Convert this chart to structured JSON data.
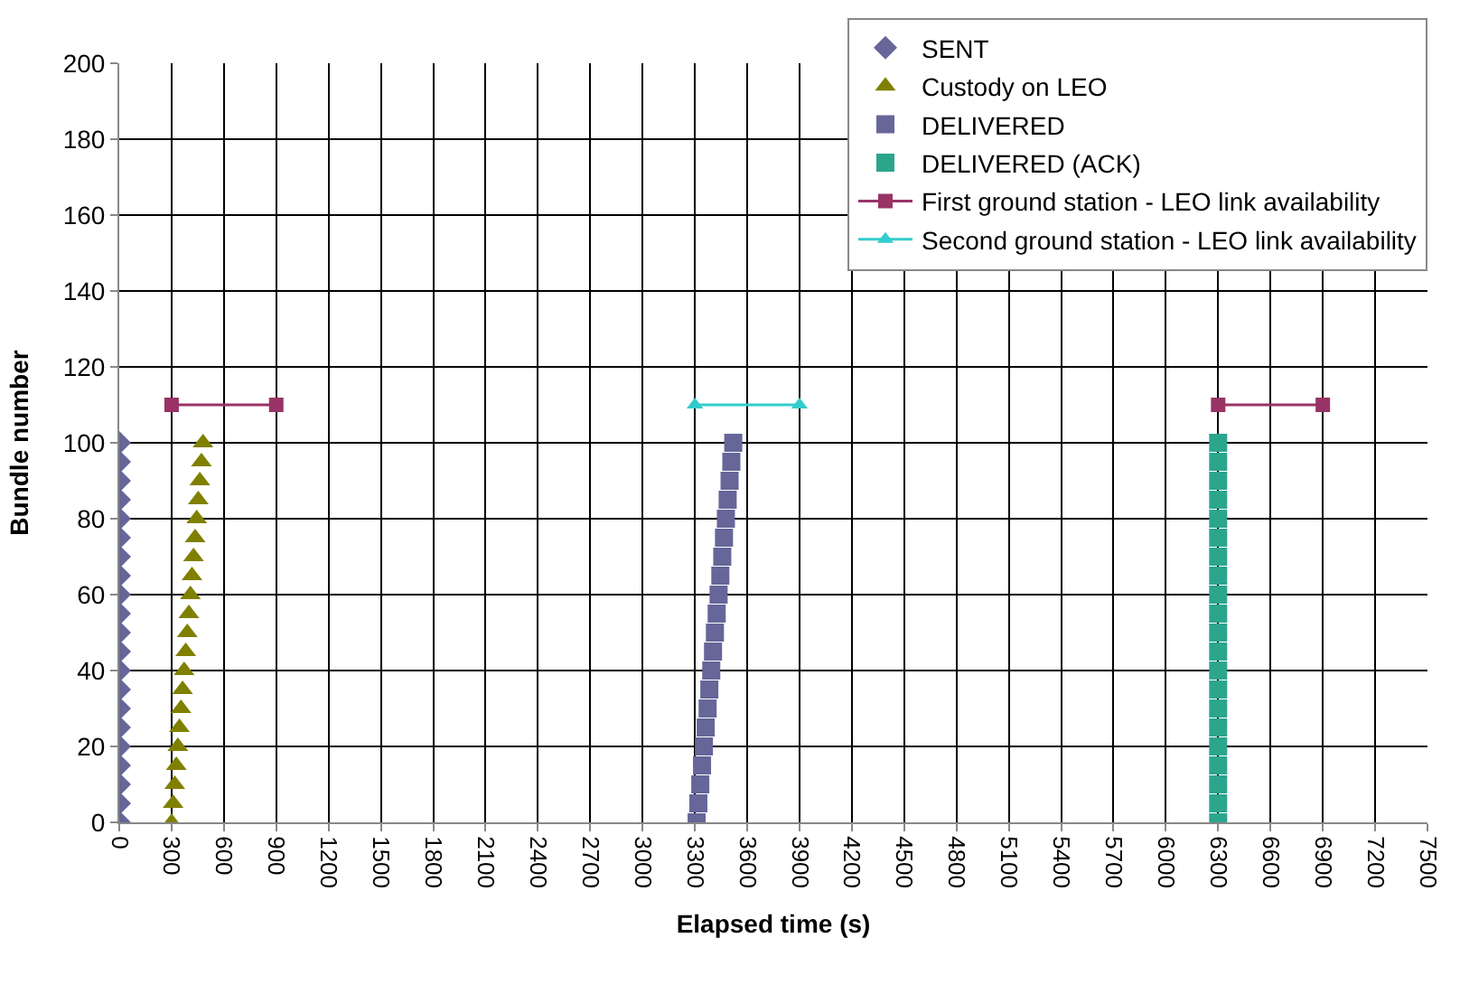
{
  "chart_data": {
    "type": "scatter",
    "xlabel": "Elapsed time (s)",
    "ylabel": "Bundle number",
    "xlim": [
      0,
      7500
    ],
    "xticks": [
      0,
      300,
      600,
      900,
      1200,
      1500,
      1800,
      2100,
      2400,
      2700,
      3000,
      3300,
      3600,
      3900,
      4200,
      4500,
      4800,
      5100,
      5400,
      5700,
      6000,
      6300,
      6600,
      6900,
      7200,
      7500
    ],
    "ylim": [
      0,
      200
    ],
    "yticks": [
      0,
      20,
      40,
      60,
      80,
      100,
      120,
      140,
      160,
      180,
      200
    ],
    "grid": true,
    "legend": "top right",
    "series": [
      {
        "name": "SENT",
        "color": "#666699",
        "marker": "diamond",
        "x": [
          0,
          0,
          0,
          0,
          0,
          0,
          0,
          0,
          0,
          0,
          0,
          0,
          0,
          0,
          0,
          0,
          0,
          0,
          0,
          0,
          0
        ],
        "values": [
          0,
          5,
          10,
          15,
          20,
          25,
          30,
          35,
          40,
          45,
          50,
          55,
          60,
          65,
          70,
          75,
          80,
          85,
          90,
          95,
          100
        ]
      },
      {
        "name": "Custody on LEO",
        "color": "#808000",
        "marker": "triangle",
        "x": [
          300,
          309,
          318,
          327,
          336,
          345,
          354,
          363,
          372,
          381,
          390,
          399,
          408,
          417,
          426,
          435,
          444,
          453,
          462,
          471,
          480
        ],
        "values": [
          0,
          5,
          10,
          15,
          20,
          25,
          30,
          35,
          40,
          45,
          50,
          55,
          60,
          65,
          70,
          75,
          80,
          85,
          90,
          95,
          100
        ]
      },
      {
        "name": "DELIVERED",
        "color": "#666699",
        "marker": "square",
        "x": [
          3310,
          3320,
          3331,
          3341,
          3352,
          3362,
          3373,
          3383,
          3394,
          3404,
          3415,
          3425,
          3436,
          3446,
          3457,
          3467,
          3478,
          3488,
          3499,
          3509,
          3520
        ],
        "values": [
          0,
          5,
          10,
          15,
          20,
          25,
          30,
          35,
          40,
          45,
          50,
          55,
          60,
          65,
          70,
          75,
          80,
          85,
          90,
          95,
          100
        ]
      },
      {
        "name": "DELIVERED (ACK)",
        "color": "#2ca58d",
        "marker": "square",
        "x": [
          6300,
          6300,
          6300,
          6300,
          6300,
          6300,
          6300,
          6300,
          6300,
          6300,
          6300,
          6300,
          6300,
          6300,
          6300,
          6300,
          6300,
          6300,
          6300,
          6300,
          6300
        ],
        "values": [
          0,
          5,
          10,
          15,
          20,
          25,
          30,
          35,
          40,
          45,
          50,
          55,
          60,
          65,
          70,
          75,
          80,
          85,
          90,
          95,
          100
        ]
      },
      {
        "name": "First ground station - LEO link availability",
        "type": "line",
        "color": "#993366",
        "marker": "square",
        "x": [
          300,
          900,
          null,
          6300,
          6900
        ],
        "values": [
          110,
          110,
          null,
          110,
          110
        ]
      },
      {
        "name": "Second ground station - LEO link availability",
        "type": "line",
        "color": "#33cccc",
        "marker": "triangle",
        "x": [
          3300,
          3900
        ],
        "values": [
          110,
          110
        ]
      }
    ]
  }
}
